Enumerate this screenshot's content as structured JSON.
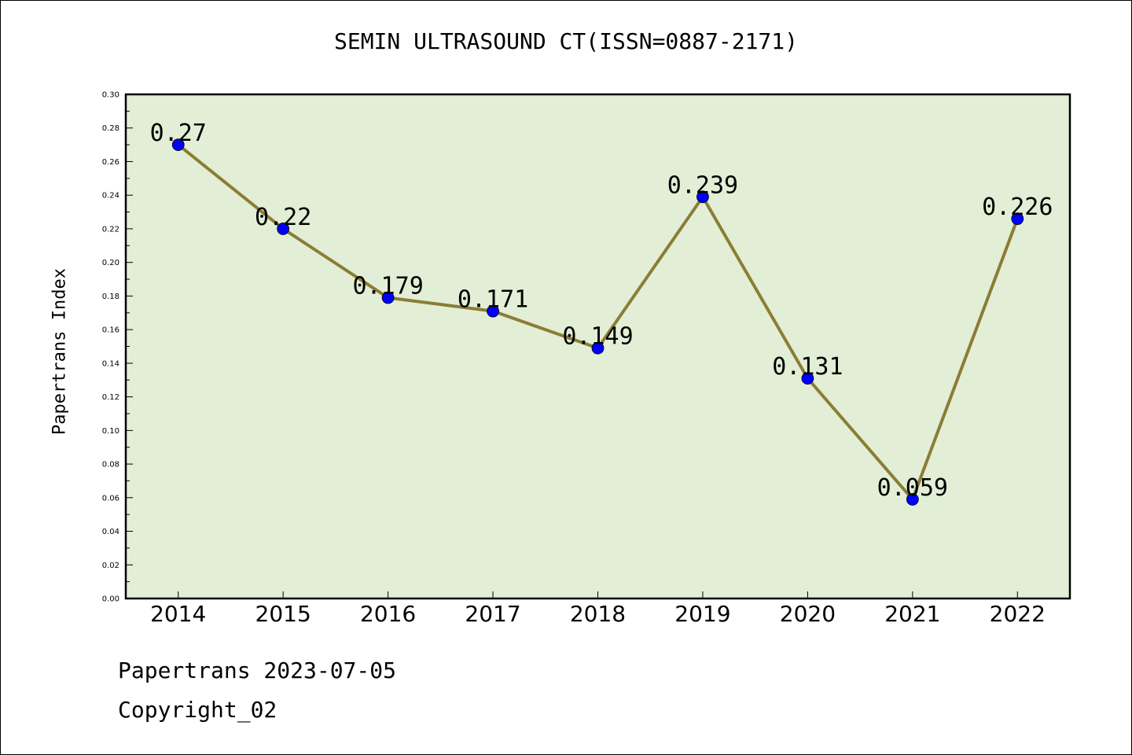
{
  "chart_data": {
    "type": "line",
    "title": "SEMIN ULTRASOUND CT(ISSN=0887-2171)",
    "ylabel": "Papertrans Index",
    "xlabel": "",
    "categories": [
      "2014",
      "2015",
      "2016",
      "2017",
      "2018",
      "2019",
      "2020",
      "2021",
      "2022"
    ],
    "series": [
      {
        "values": [
          0.27,
          0.22,
          0.179,
          0.171,
          0.149,
          0.239,
          0.131,
          0.059,
          0.226
        ],
        "labels": [
          "0.27",
          "0.22",
          "0.179",
          "0.171",
          "0.149",
          "0.239",
          "0.131",
          "0.059",
          "0.226"
        ]
      }
    ],
    "ylim": [
      0,
      0.3
    ],
    "yticks": [
      "0.00",
      "0.02",
      "0.04",
      "0.06",
      "0.08",
      "0.10",
      "0.12",
      "0.14",
      "0.16",
      "0.18",
      "0.20",
      "0.22",
      "0.24",
      "0.26",
      "0.28",
      "0.30"
    ],
    "grid": false,
    "colors": {
      "plot_background": "#e2efd6",
      "line": "#8b7d35",
      "marker": "#0000ff"
    }
  },
  "footer": {
    "date": "Papertrans 2023-07-05",
    "copyright": "Copyright_02"
  }
}
